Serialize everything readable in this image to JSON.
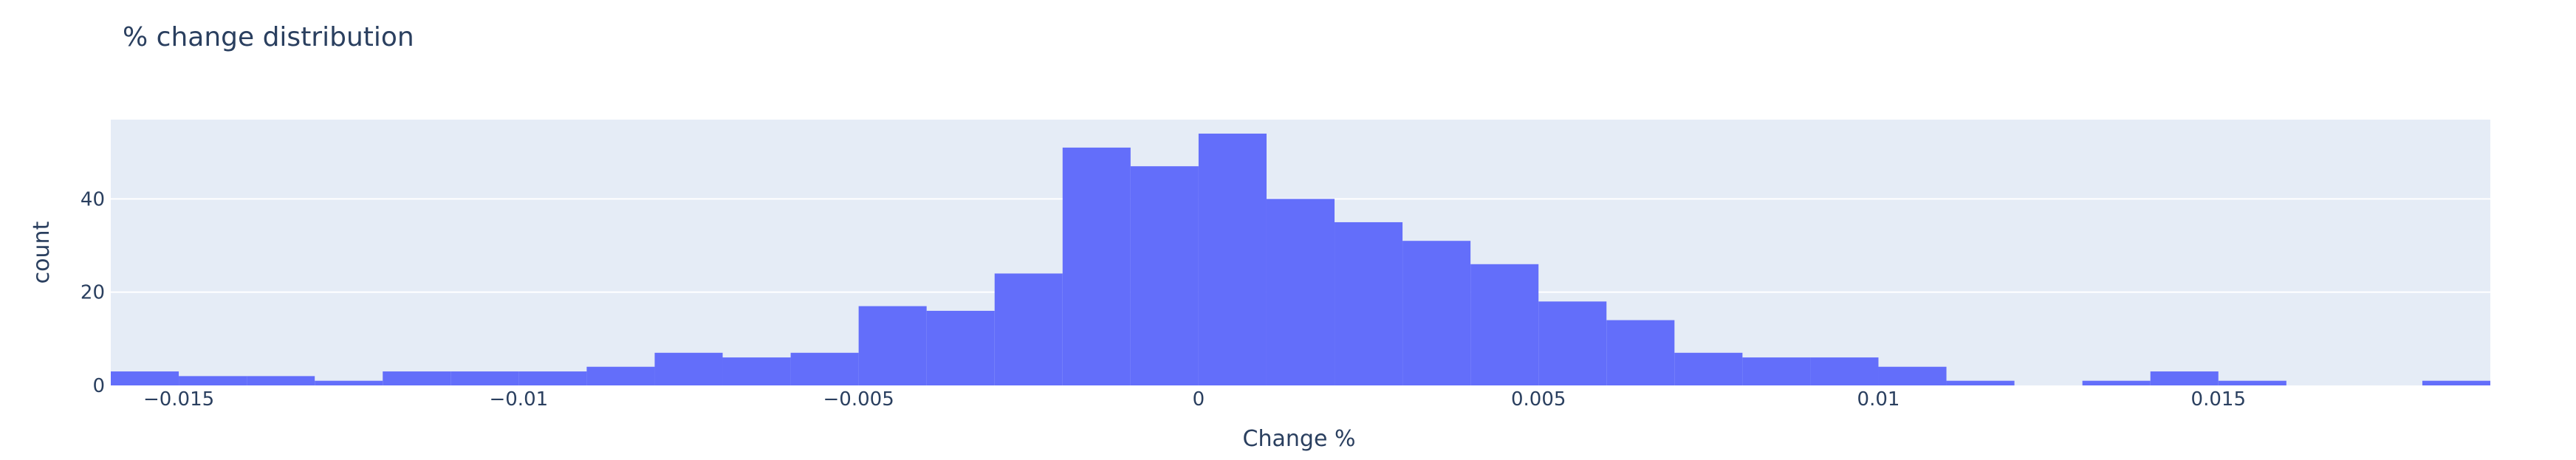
{
  "chart_data": {
    "type": "bar",
    "title": "% change distribution",
    "xlabel": "Change %",
    "ylabel": "count",
    "bin_width": 0.001,
    "x": [
      -0.0155,
      -0.0145,
      -0.0135,
      -0.0125,
      -0.0115,
      -0.0105,
      -0.0095,
      -0.0085,
      -0.0075,
      -0.0065,
      -0.0055,
      -0.0045,
      -0.0035,
      -0.0025,
      -0.0015,
      -0.0005,
      0.0005,
      0.0015,
      0.0025,
      0.0035,
      0.0045,
      0.0055,
      0.0065,
      0.0075,
      0.0085,
      0.0095,
      0.0105,
      0.0115,
      0.0125,
      0.0135,
      0.0145,
      0.0155,
      0.0165,
      0.0175,
      0.0185
    ],
    "values": [
      3,
      2,
      2,
      1,
      3,
      3,
      3,
      4,
      7,
      6,
      7,
      17,
      16,
      24,
      51,
      47,
      54,
      40,
      35,
      31,
      26,
      18,
      14,
      7,
      6,
      6,
      4,
      1,
      0,
      1,
      3,
      1,
      0,
      0,
      1
    ],
    "xlim": [
      -0.016,
      0.019
    ],
    "ylim": [
      0,
      57
    ],
    "x_ticks": [
      -0.015,
      -0.01,
      -0.005,
      0,
      0.005,
      0.01,
      0.015
    ],
    "x_tick_labels": [
      "−0.015",
      "−0.01",
      "−0.005",
      "0",
      "0.005",
      "0.01",
      "0.015"
    ],
    "y_ticks": [
      0,
      20,
      40
    ],
    "y_tick_labels": [
      "0",
      "20",
      "40"
    ],
    "grid": true,
    "bar_color": "#636efa",
    "plot_bg": "#e5ecf6",
    "grid_color": "#ffffff",
    "text_color": "#2a3f5f"
  }
}
